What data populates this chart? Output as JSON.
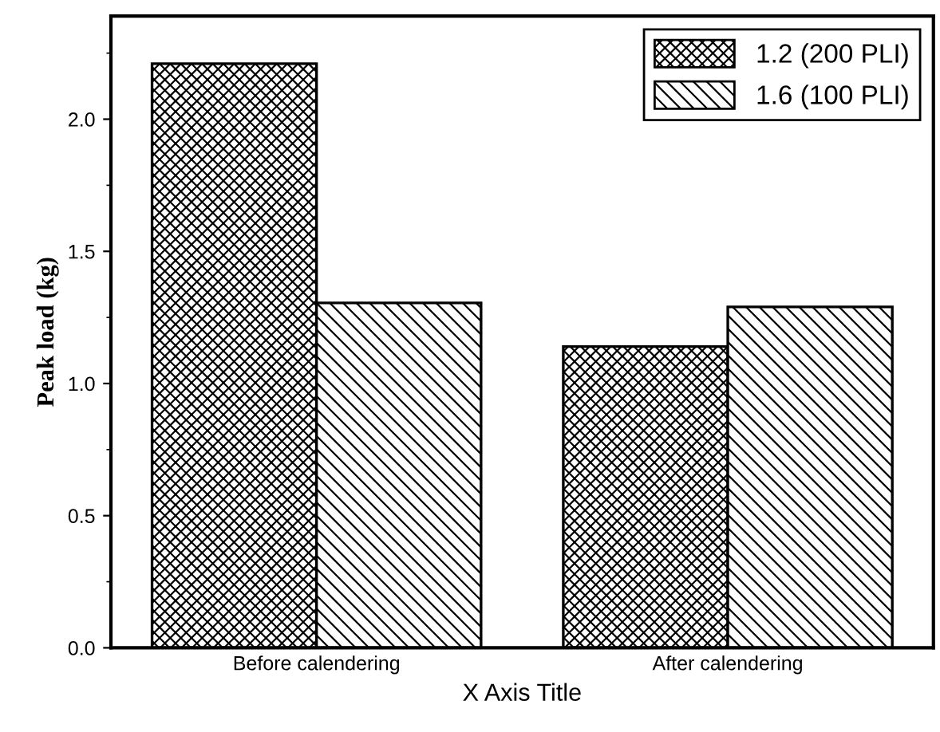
{
  "chart_data": {
    "type": "bar",
    "xlabel": "X Axis Title",
    "ylabel": "Peak load (kg)",
    "categories": [
      "Before calendering",
      "After calendering"
    ],
    "series": [
      {
        "name": "1.2 (200 PLI)",
        "color": "#000000",
        "values": [
          2.21,
          1.14
        ]
      },
      {
        "name": "1.6 (100 PLI)",
        "color": "#000000",
        "values": [
          1.305,
          1.29
        ]
      }
    ],
    "ylim": [
      0,
      2.39
    ],
    "yticks": [
      {
        "value": 0,
        "label": "0.0"
      },
      0.5,
      {
        "value": 1,
        "label": "1.0"
      },
      1.5,
      {
        "value": 2,
        "label": "2.0"
      }
    ],
    "legend": "top right",
    "grid": false
  }
}
